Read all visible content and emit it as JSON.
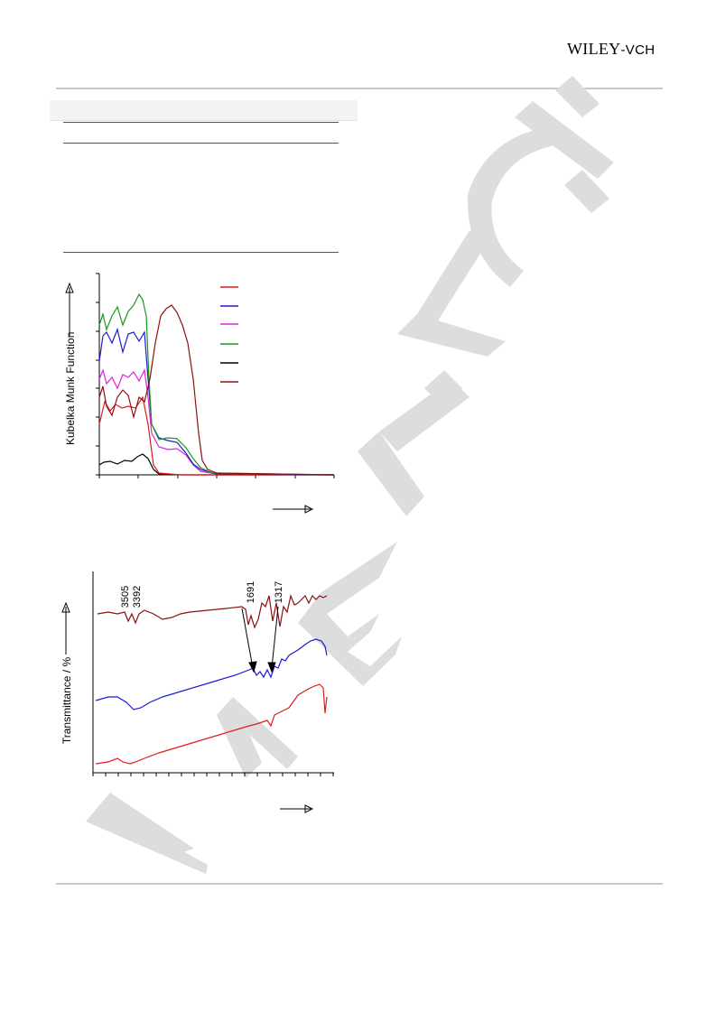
{
  "header": {
    "publisher_main": "WILEY",
    "publisher_suffix": "-VCH",
    "watermark": "WILEY-VCH"
  },
  "colors": {
    "rule": "#c8c8c8",
    "watermark": "#dddddd",
    "red": "#e01b1b",
    "blue": "#1b1bd6",
    "magenta": "#e020e0",
    "green": "#1a9a1a",
    "black": "#000000",
    "darkred": "#8b1010"
  },
  "chart_data": [
    {
      "type": "line",
      "title": "",
      "xlabel": "",
      "ylabel": "Kubelka Munk Function",
      "legend_position": "top-right",
      "legend_entries": 6,
      "series": [
        {
          "color": "red",
          "shape": "low absorption, edge ~0.15"
        },
        {
          "color": "blue",
          "shape": "high UV, edge ~0.2"
        },
        {
          "color": "magenta",
          "shape": "medium UV, tail"
        },
        {
          "color": "green",
          "shape": "highest UV, broad tail"
        },
        {
          "color": "black",
          "shape": "weak"
        },
        {
          "color": "darkred",
          "shape": "visible band peak"
        }
      ]
    },
    {
      "type": "line",
      "title": "",
      "xlabel": "",
      "ylabel": "Transmittance / %",
      "annotations": [
        "3505",
        "3392",
        "1691",
        "1317"
      ],
      "series": [
        {
          "color": "darkred",
          "position": "top"
        },
        {
          "color": "blue",
          "position": "middle"
        },
        {
          "color": "red",
          "position": "bottom"
        }
      ]
    }
  ]
}
